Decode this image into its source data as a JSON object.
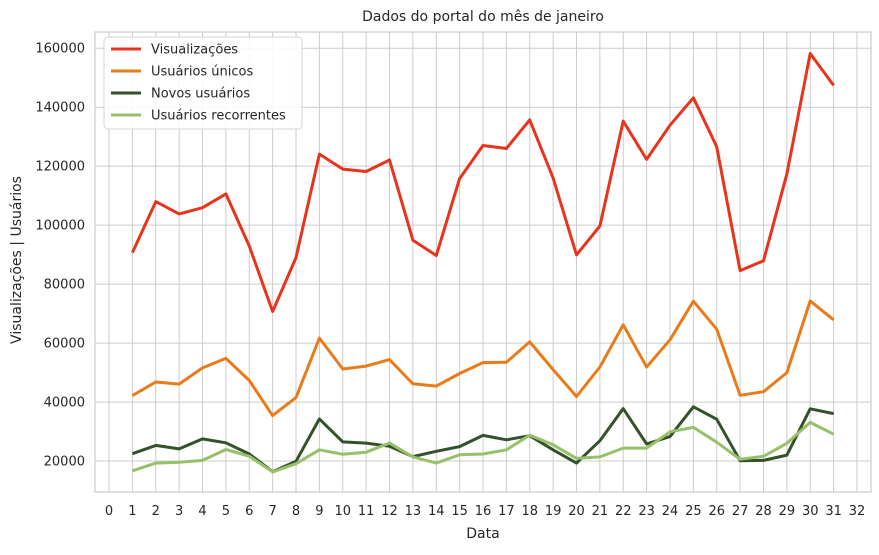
{
  "chart_data": {
    "type": "line",
    "title": "Dados do portal do mês de janeiro",
    "xlabel": "Data",
    "ylabel": "Visualizações | Usuários",
    "xlim": [
      -0.6,
      32.6
    ],
    "ylim": [
      9500,
      165500
    ],
    "xticks": [
      0,
      1,
      2,
      3,
      4,
      5,
      6,
      7,
      8,
      9,
      10,
      11,
      12,
      13,
      14,
      15,
      16,
      17,
      18,
      19,
      20,
      21,
      22,
      23,
      24,
      25,
      26,
      27,
      28,
      29,
      30,
      31,
      32
    ],
    "yticks": [
      20000,
      40000,
      60000,
      80000,
      100000,
      120000,
      140000,
      160000
    ],
    "grid": true,
    "legend_position": "top-left",
    "x": [
      1,
      2,
      3,
      4,
      5,
      6,
      7,
      8,
      9,
      10,
      11,
      12,
      13,
      14,
      15,
      16,
      17,
      18,
      19,
      20,
      21,
      22,
      23,
      24,
      25,
      26,
      27,
      28,
      29,
      30,
      31
    ],
    "series": [
      {
        "name": "Visualizações",
        "color": "#e8341c",
        "values": [
          90700,
          108000,
          103800,
          105900,
          110600,
          92900,
          70700,
          89000,
          124100,
          119000,
          118200,
          122100,
          94900,
          89700,
          115800,
          127000,
          126000,
          135700,
          116000,
          89900,
          99700,
          135300,
          122300,
          133900,
          143200,
          126600,
          84600,
          87900,
          117400,
          158200,
          147400
        ]
      },
      {
        "name": "Usuários únicos",
        "color": "#ea7b1b",
        "values": [
          42200,
          46800,
          46100,
          51600,
          54800,
          47300,
          35400,
          41500,
          61700,
          51200,
          52200,
          54400,
          46200,
          45400,
          49700,
          53400,
          53500,
          60400,
          51000,
          41900,
          51900,
          66200,
          51900,
          61100,
          74200,
          64700,
          42300,
          43500,
          50000,
          74300,
          67900
        ]
      },
      {
        "name": "Novos usuários",
        "color": "#33522a",
        "values": [
          22500,
          25300,
          24100,
          27500,
          26200,
          22400,
          16400,
          19900,
          34300,
          26500,
          26100,
          25000,
          21500,
          23300,
          24900,
          28700,
          27200,
          28600,
          23800,
          19300,
          26900,
          37800,
          25800,
          28300,
          38400,
          34200,
          20100,
          20200,
          22000,
          37700,
          36100
        ]
      },
      {
        "name": "Usuários recorrentes",
        "color": "#97c06b",
        "values": [
          16700,
          19300,
          19600,
          20200,
          23900,
          21600,
          16300,
          19100,
          23800,
          22300,
          23000,
          26100,
          21400,
          19300,
          22100,
          22400,
          23800,
          28800,
          25500,
          20900,
          21400,
          24400,
          24400,
          29900,
          31400,
          26400,
          20600,
          21600,
          26000,
          33100,
          29100
        ]
      }
    ]
  }
}
